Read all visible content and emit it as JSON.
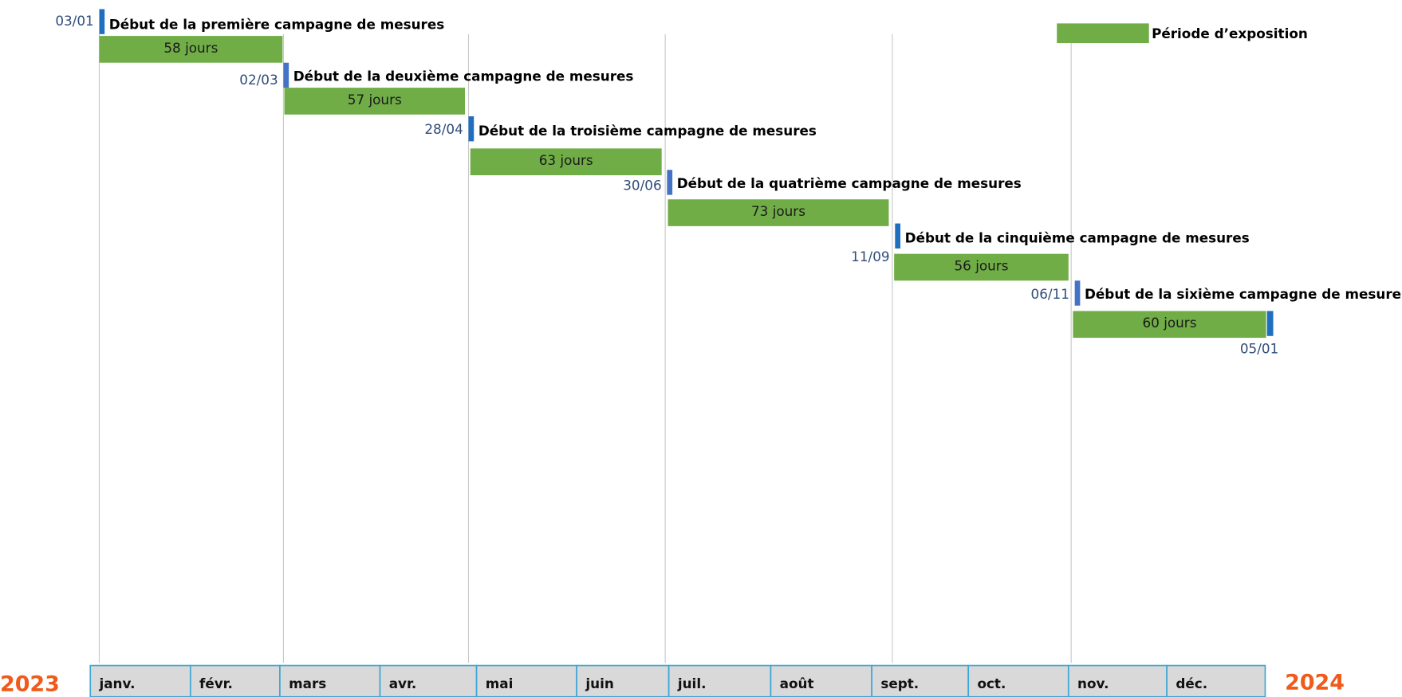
{
  "legend": "Période d’exposition",
  "campaigns": [
    {
      "start": "03/01",
      "title": "Début de la première campagne de mesures",
      "duration": "58 jours"
    },
    {
      "start": "02/03",
      "title": "Début de la deuxième campagne de mesures",
      "duration": "57 jours"
    },
    {
      "start": "28/04",
      "title": "Début de la troisième campagne de mesures",
      "duration": "63 jours"
    },
    {
      "start": "30/06",
      "title": "Début de la quatrième campagne de mesures",
      "duration": "73 jours"
    },
    {
      "start": "11/09",
      "title": "Début de la cinquième campagne de mesures",
      "duration": "56 jours"
    },
    {
      "start": "06/11",
      "title": "Début de la sixième campagne de mesures",
      "duration": "60 jours"
    }
  ],
  "end_date": "05/01",
  "months": [
    "janv.",
    "févr.",
    "mars",
    "avr.",
    "mai",
    "juin",
    "juil.",
    "août",
    "sept.",
    "oct.",
    "nov.",
    "déc."
  ],
  "years": [
    "2023",
    "2024"
  ]
}
